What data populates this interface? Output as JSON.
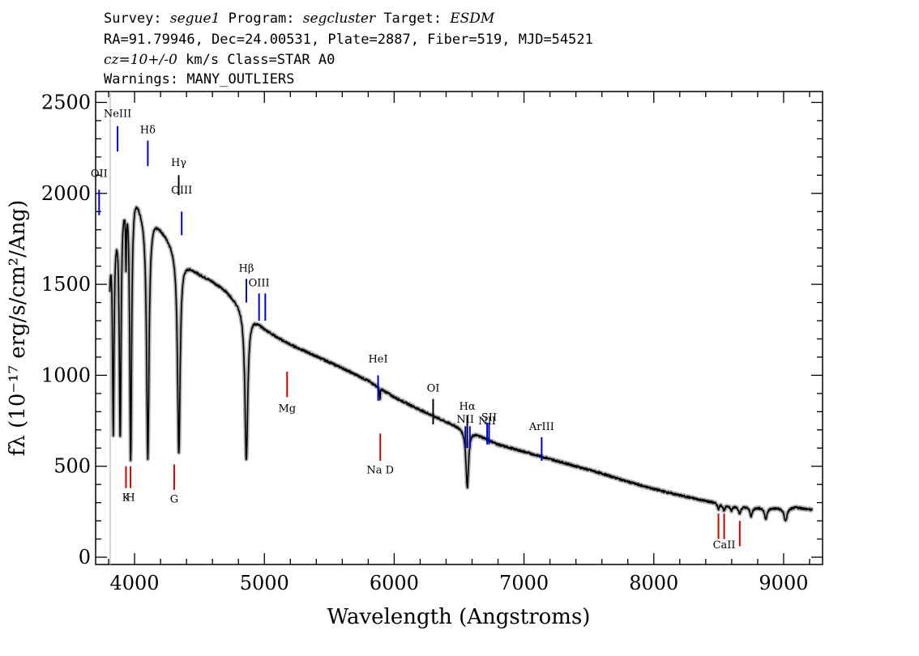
{
  "header": {
    "line1": [
      {
        "text": "Survey: ",
        "italic": false
      },
      {
        "text": "segue1",
        "italic": true
      },
      {
        "text": " Program: ",
        "italic": false
      },
      {
        "text": "segcluster",
        "italic": true
      },
      {
        "text": " Target: ",
        "italic": false
      },
      {
        "text": "ESDM",
        "italic": true
      }
    ],
    "line2": "RA=91.79946, Dec=24.00531, Plate=2887, Fiber=519, MJD=54521",
    "line3": [
      {
        "text": "cz=10+/-0",
        "italic": true
      },
      {
        "text": " km/s Class=STAR A0",
        "italic": false
      }
    ],
    "line4": "Warnings: MANY_OUTLIERS"
  },
  "chart_data": {
    "type": "line",
    "xlabel": "Wavelength (Angstroms)",
    "ylabel": "fλ (10⁻¹⁷ erg/s/cm²/Ang)",
    "xlim": [
      3700,
      9300
    ],
    "ylim": [
      -40,
      2560
    ],
    "xticks": [
      4000,
      5000,
      6000,
      7000,
      8000,
      9000
    ],
    "yticks": [
      0,
      500,
      1000,
      1500,
      2000,
      2500
    ],
    "continuum": [
      [
        3810,
        1800
      ],
      [
        3850,
        1850
      ],
      [
        3900,
        1980
      ],
      [
        3950,
        2100
      ],
      [
        4000,
        2040
      ],
      [
        4050,
        1940
      ],
      [
        4100,
        1880
      ],
      [
        4150,
        1870
      ],
      [
        4200,
        1820
      ],
      [
        4300,
        1720
      ],
      [
        4400,
        1620
      ],
      [
        4500,
        1560
      ],
      [
        4600,
        1520
      ],
      [
        4700,
        1470
      ],
      [
        4800,
        1400
      ],
      [
        4900,
        1330
      ],
      [
        5000,
        1260
      ],
      [
        5100,
        1210
      ],
      [
        5200,
        1170
      ],
      [
        5400,
        1105
      ],
      [
        5600,
        1040
      ],
      [
        5800,
        970
      ],
      [
        6000,
        880
      ],
      [
        6200,
        810
      ],
      [
        6400,
        745
      ],
      [
        6600,
        690
      ],
      [
        6800,
        620
      ],
      [
        7000,
        580
      ],
      [
        7200,
        540
      ],
      [
        7400,
        500
      ],
      [
        7600,
        460
      ],
      [
        7800,
        415
      ],
      [
        8000,
        375
      ],
      [
        8200,
        340
      ],
      [
        8400,
        310
      ],
      [
        8600,
        285
      ],
      [
        8800,
        275
      ],
      [
        9000,
        270
      ],
      [
        9100,
        275
      ],
      [
        9220,
        260
      ]
    ],
    "absorption_lines": [
      {
        "wave": 3800,
        "depth": 0.55,
        "width": 6
      },
      {
        "wave": 3836,
        "depth": 0.62,
        "width": 7
      },
      {
        "wave": 3889,
        "depth": 0.66,
        "width": 8
      },
      {
        "wave": 3934,
        "depth": 0.18,
        "width": 4
      },
      {
        "wave": 3970,
        "depth": 0.74,
        "width": 9
      },
      {
        "wave": 4102,
        "depth": 0.71,
        "width": 11
      },
      {
        "wave": 4341,
        "depth": 0.66,
        "width": 12
      },
      {
        "wave": 4861,
        "depth": 0.61,
        "width": 13
      },
      {
        "wave": 5890,
        "depth": 0.07,
        "width": 3
      },
      {
        "wave": 6563,
        "depth": 0.45,
        "width": 12
      },
      {
        "wave": 8498,
        "depth": 0.1,
        "width": 9
      },
      {
        "wave": 8542,
        "depth": 0.12,
        "width": 10
      },
      {
        "wave": 8598,
        "depth": 0.1,
        "width": 10
      },
      {
        "wave": 8662,
        "depth": 0.14,
        "width": 11
      },
      {
        "wave": 8750,
        "depth": 0.18,
        "width": 12
      },
      {
        "wave": 8863,
        "depth": 0.22,
        "width": 13
      },
      {
        "wave": 9015,
        "depth": 0.26,
        "width": 14
      }
    ],
    "emission_markers": [
      {
        "label": "OII",
        "wave": 3727,
        "y0": 1880,
        "y1": 2020,
        "label_y": 2090,
        "color": "#0000cc"
      },
      {
        "label": "NeIII",
        "wave": 3869,
        "y0": 2230,
        "y1": 2370,
        "label_y": 2420,
        "color": "#0000cc"
      },
      {
        "label": "Hδ",
        "wave": 4102,
        "y0": 2150,
        "y1": 2290,
        "label_y": 2330,
        "color": "#0000cc"
      },
      {
        "label": "Hγ",
        "wave": 4340,
        "y0": 1990,
        "y1": 2100,
        "label_y": 2150,
        "color": "#000000"
      },
      {
        "label": "OIII",
        "wave": 4363,
        "y0": 1770,
        "y1": 1900,
        "label_y": 2000,
        "color": "#0000cc"
      },
      {
        "label": "Hβ",
        "wave": 4861,
        "y0": 1400,
        "y1": 1530,
        "label_y": 1570,
        "color": "#0000cc"
      },
      {
        "label": "OIII",
        "wave": 4959,
        "y0": 1300,
        "y1": 1450,
        "label_y": 1490,
        "color": "#0000cc"
      },
      {
        "label": "",
        "wave": 5007,
        "y0": 1300,
        "y1": 1450,
        "label_y": null,
        "color": "#0000cc"
      },
      {
        "label": "HeI",
        "wave": 5876,
        "y0": 860,
        "y1": 1000,
        "label_y": 1070,
        "color": "#0000cc"
      },
      {
        "label": "OI",
        "wave": 6300,
        "y0": 730,
        "y1": 870,
        "label_y": 910,
        "color": "#000000"
      },
      {
        "label": "NII",
        "wave": 6548,
        "y0": 600,
        "y1": 720,
        "label_y": 740,
        "color": "#0000cc"
      },
      {
        "label": "Hα",
        "wave": 6563,
        "y0": 600,
        "y1": 780,
        "label_y": 810,
        "color": "#000000"
      },
      {
        "label": "",
        "wave": 6583,
        "y0": 600,
        "y1": 720,
        "label_y": null,
        "color": "#0000cc"
      },
      {
        "label": "NII",
        "wave": 6716,
        "y0": 620,
        "y1": 740,
        "label_y": 730,
        "color": "#0000cc"
      },
      {
        "label": "SII",
        "wave": 6731,
        "y0": 620,
        "y1": 740,
        "label_y": 750,
        "color": "#0000cc"
      },
      {
        "label": "ArIII",
        "wave": 7136,
        "y0": 530,
        "y1": 660,
        "label_y": 700,
        "color": "#0000cc"
      }
    ],
    "absorption_markers": [
      {
        "label": "K",
        "wave": 3934,
        "y0": 380,
        "y1": 500,
        "label_y": 310,
        "color": "#cc0000"
      },
      {
        "label": "H",
        "wave": 3969,
        "y0": 380,
        "y1": 500,
        "label_y": 310,
        "color": "#cc0000"
      },
      {
        "label": "G",
        "wave": 4305,
        "y0": 370,
        "y1": 510,
        "label_y": 300,
        "color": "#cc0000"
      },
      {
        "label": "Mg",
        "wave": 5175,
        "y0": 880,
        "y1": 1020,
        "label_y": 800,
        "color": "#cc0000"
      },
      {
        "label": "Na D",
        "wave": 5893,
        "y0": 530,
        "y1": 680,
        "label_y": 460,
        "color": "#cc0000"
      },
      {
        "label": "",
        "wave": 8498,
        "y0": 100,
        "y1": 240,
        "label_y": null,
        "color": "#cc0000"
      },
      {
        "label": "CaII",
        "wave": 8542,
        "y0": 100,
        "y1": 240,
        "label_y": 50,
        "color": "#cc0000"
      },
      {
        "label": "",
        "wave": 8662,
        "y0": 60,
        "y1": 200,
        "label_y": null,
        "color": "#cc0000"
      }
    ]
  }
}
